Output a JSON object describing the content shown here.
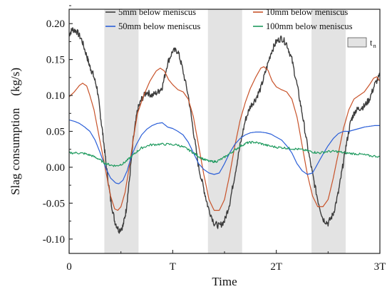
{
  "chart_data": {
    "type": "line",
    "xlabel": "Time",
    "ylabel": "Slag consumption　(kg/s)",
    "xlim": [
      0,
      3
    ],
    "ylim": [
      -0.12,
      0.22
    ],
    "x_ticks": [
      {
        "value": 0,
        "label": "0"
      },
      {
        "value": 1,
        "label": "T"
      },
      {
        "value": 2,
        "label": "2T"
      },
      {
        "value": 3,
        "label": "3T"
      }
    ],
    "y_ticks": [
      {
        "value": -0.1,
        "label": "-0.10"
      },
      {
        "value": -0.05,
        "label": "-0.05"
      },
      {
        "value": 0.0,
        "label": "0.00"
      },
      {
        "value": 0.05,
        "label": "0.05"
      },
      {
        "value": 0.1,
        "label": "0.10"
      },
      {
        "value": 0.15,
        "label": "0.15"
      },
      {
        "value": 0.2,
        "label": "0.20"
      }
    ],
    "shaded_regions": {
      "label": "t",
      "label_sub": "n",
      "color": "#e3e3e3",
      "ranges": [
        [
          0.34,
          0.67
        ],
        [
          1.34,
          1.67
        ],
        [
          2.34,
          2.67
        ]
      ]
    },
    "series": [
      {
        "name": "5mm below meniscus",
        "color": "#3c3c3c",
        "noise": 0.0045,
        "points": [
          [
            0,
            0.185
          ],
          [
            0.03,
            0.192
          ],
          [
            0.07,
            0.19
          ],
          [
            0.12,
            0.178
          ],
          [
            0.17,
            0.155
          ],
          [
            0.2,
            0.14
          ],
          [
            0.23,
            0.13
          ],
          [
            0.27,
            0.11
          ],
          [
            0.3,
            0.075
          ],
          [
            0.33,
            0.04
          ],
          [
            0.36,
            0.0
          ],
          [
            0.4,
            -0.045
          ],
          [
            0.44,
            -0.075
          ],
          [
            0.48,
            -0.088
          ],
          [
            0.52,
            -0.082
          ],
          [
            0.55,
            -0.06
          ],
          [
            0.58,
            -0.02
          ],
          [
            0.62,
            0.04
          ],
          [
            0.66,
            0.08
          ],
          [
            0.7,
            0.095
          ],
          [
            0.75,
            0.105
          ],
          [
            0.8,
            0.1
          ],
          [
            0.86,
            0.105
          ],
          [
            0.9,
            0.112
          ],
          [
            0.95,
            0.145
          ],
          [
            1.0,
            0.162
          ],
          [
            1.05,
            0.162
          ],
          [
            1.09,
            0.14
          ],
          [
            1.15,
            0.1
          ],
          [
            1.2,
            0.05
          ],
          [
            1.25,
            0.0
          ],
          [
            1.3,
            -0.03
          ],
          [
            1.34,
            -0.055
          ],
          [
            1.4,
            -0.078
          ],
          [
            1.45,
            -0.082
          ],
          [
            1.5,
            -0.075
          ],
          [
            1.55,
            -0.05
          ],
          [
            1.6,
            -0.01
          ],
          [
            1.65,
            0.03
          ],
          [
            1.7,
            0.065
          ],
          [
            1.75,
            0.085
          ],
          [
            1.8,
            0.095
          ],
          [
            1.85,
            0.11
          ],
          [
            1.9,
            0.135
          ],
          [
            1.95,
            0.16
          ],
          [
            2.0,
            0.175
          ],
          [
            2.05,
            0.18
          ],
          [
            2.1,
            0.172
          ],
          [
            2.15,
            0.15
          ],
          [
            2.2,
            0.115
          ],
          [
            2.25,
            0.075
          ],
          [
            2.3,
            0.03
          ],
          [
            2.35,
            -0.01
          ],
          [
            2.4,
            -0.045
          ],
          [
            2.45,
            -0.072
          ],
          [
            2.5,
            -0.078
          ],
          [
            2.55,
            -0.065
          ],
          [
            2.6,
            -0.035
          ],
          [
            2.64,
            0.0
          ],
          [
            2.68,
            0.035
          ],
          [
            2.72,
            0.065
          ],
          [
            2.76,
            0.078
          ],
          [
            2.8,
            0.082
          ],
          [
            2.85,
            0.085
          ],
          [
            2.9,
            0.095
          ],
          [
            2.95,
            0.115
          ],
          [
            3.0,
            0.128
          ]
        ]
      },
      {
        "name": "10mm below meniscus",
        "color": "#c8532a",
        "noise": 0,
        "points": [
          [
            0,
            0.098
          ],
          [
            0.05,
            0.105
          ],
          [
            0.1,
            0.114
          ],
          [
            0.13,
            0.117
          ],
          [
            0.17,
            0.113
          ],
          [
            0.2,
            0.1
          ],
          [
            0.24,
            0.08
          ],
          [
            0.28,
            0.05
          ],
          [
            0.32,
            0.02
          ],
          [
            0.36,
            -0.01
          ],
          [
            0.4,
            -0.04
          ],
          [
            0.44,
            -0.058
          ],
          [
            0.47,
            -0.06
          ],
          [
            0.5,
            -0.055
          ],
          [
            0.54,
            -0.035
          ],
          [
            0.58,
            0.0
          ],
          [
            0.62,
            0.04
          ],
          [
            0.66,
            0.075
          ],
          [
            0.72,
            0.1
          ],
          [
            0.78,
            0.12
          ],
          [
            0.84,
            0.134
          ],
          [
            0.88,
            0.138
          ],
          [
            0.92,
            0.134
          ],
          [
            0.96,
            0.122
          ],
          [
            1.0,
            0.115
          ],
          [
            1.05,
            0.108
          ],
          [
            1.1,
            0.105
          ],
          [
            1.15,
            0.095
          ],
          [
            1.2,
            0.07
          ],
          [
            1.25,
            0.03
          ],
          [
            1.3,
            -0.01
          ],
          [
            1.35,
            -0.045
          ],
          [
            1.4,
            -0.06
          ],
          [
            1.45,
            -0.06
          ],
          [
            1.5,
            -0.045
          ],
          [
            1.55,
            -0.01
          ],
          [
            1.6,
            0.03
          ],
          [
            1.65,
            0.065
          ],
          [
            1.7,
            0.09
          ],
          [
            1.75,
            0.11
          ],
          [
            1.8,
            0.125
          ],
          [
            1.85,
            0.138
          ],
          [
            1.88,
            0.14
          ],
          [
            1.92,
            0.135
          ],
          [
            1.96,
            0.12
          ],
          [
            2.0,
            0.112
          ],
          [
            2.05,
            0.108
          ],
          [
            2.1,
            0.105
          ],
          [
            2.15,
            0.095
          ],
          [
            2.2,
            0.07
          ],
          [
            2.25,
            0.03
          ],
          [
            2.3,
            -0.01
          ],
          [
            2.35,
            -0.04
          ],
          [
            2.4,
            -0.055
          ],
          [
            2.45,
            -0.055
          ],
          [
            2.5,
            -0.045
          ],
          [
            2.55,
            -0.015
          ],
          [
            2.6,
            0.02
          ],
          [
            2.65,
            0.055
          ],
          [
            2.7,
            0.08
          ],
          [
            2.75,
            0.095
          ],
          [
            2.8,
            0.1
          ],
          [
            2.85,
            0.105
          ],
          [
            2.9,
            0.115
          ],
          [
            2.94,
            0.124
          ],
          [
            2.97,
            0.126
          ],
          [
            3.0,
            0.12
          ]
        ]
      },
      {
        "name": "50mm below meniscus",
        "color": "#2b5fd8",
        "noise": 0,
        "points": [
          [
            0,
            0.066
          ],
          [
            0.05,
            0.064
          ],
          [
            0.1,
            0.061
          ],
          [
            0.15,
            0.056
          ],
          [
            0.2,
            0.05
          ],
          [
            0.25,
            0.038
          ],
          [
            0.3,
            0.02
          ],
          [
            0.35,
            0.0
          ],
          [
            0.4,
            -0.015
          ],
          [
            0.45,
            -0.022
          ],
          [
            0.48,
            -0.023
          ],
          [
            0.52,
            -0.018
          ],
          [
            0.56,
            -0.005
          ],
          [
            0.6,
            0.015
          ],
          [
            0.65,
            0.032
          ],
          [
            0.7,
            0.045
          ],
          [
            0.75,
            0.053
          ],
          [
            0.8,
            0.058
          ],
          [
            0.85,
            0.061
          ],
          [
            0.9,
            0.062
          ],
          [
            0.95,
            0.056
          ],
          [
            1.0,
            0.054
          ],
          [
            1.05,
            0.05
          ],
          [
            1.1,
            0.045
          ],
          [
            1.15,
            0.035
          ],
          [
            1.2,
            0.02
          ],
          [
            1.25,
            0.005
          ],
          [
            1.3,
            -0.003
          ],
          [
            1.35,
            -0.008
          ],
          [
            1.4,
            -0.01
          ],
          [
            1.45,
            -0.008
          ],
          [
            1.5,
            0.005
          ],
          [
            1.55,
            0.02
          ],
          [
            1.6,
            0.032
          ],
          [
            1.65,
            0.04
          ],
          [
            1.7,
            0.045
          ],
          [
            1.75,
            0.048
          ],
          [
            1.8,
            0.049
          ],
          [
            1.85,
            0.049
          ],
          [
            1.9,
            0.048
          ],
          [
            1.95,
            0.046
          ],
          [
            2.0,
            0.042
          ],
          [
            2.05,
            0.038
          ],
          [
            2.1,
            0.03
          ],
          [
            2.15,
            0.02
          ],
          [
            2.2,
            0.005
          ],
          [
            2.25,
            -0.005
          ],
          [
            2.3,
            -0.01
          ],
          [
            2.35,
            -0.008
          ],
          [
            2.4,
            0.005
          ],
          [
            2.45,
            0.018
          ],
          [
            2.5,
            0.03
          ],
          [
            2.55,
            0.04
          ],
          [
            2.6,
            0.047
          ],
          [
            2.65,
            0.05
          ],
          [
            2.7,
            0.05
          ],
          [
            2.75,
            0.052
          ],
          [
            2.8,
            0.054
          ],
          [
            2.85,
            0.056
          ],
          [
            2.9,
            0.057
          ],
          [
            2.95,
            0.058
          ],
          [
            3.0,
            0.058
          ]
        ]
      },
      {
        "name": "100mm below meniscus",
        "color": "#1e9a5e",
        "noise": 0.0016,
        "points": [
          [
            0,
            0.02
          ],
          [
            0.08,
            0.02
          ],
          [
            0.15,
            0.019
          ],
          [
            0.22,
            0.016
          ],
          [
            0.28,
            0.012
          ],
          [
            0.34,
            0.006
          ],
          [
            0.4,
            0.003
          ],
          [
            0.46,
            0.002
          ],
          [
            0.52,
            0.005
          ],
          [
            0.58,
            0.012
          ],
          [
            0.64,
            0.02
          ],
          [
            0.7,
            0.027
          ],
          [
            0.78,
            0.031
          ],
          [
            0.86,
            0.032
          ],
          [
            0.95,
            0.032
          ],
          [
            1.05,
            0.031
          ],
          [
            1.12,
            0.027
          ],
          [
            1.18,
            0.022
          ],
          [
            1.24,
            0.016
          ],
          [
            1.3,
            0.011
          ],
          [
            1.36,
            0.008
          ],
          [
            1.42,
            0.008
          ],
          [
            1.48,
            0.012
          ],
          [
            1.54,
            0.018
          ],
          [
            1.6,
            0.024
          ],
          [
            1.66,
            0.03
          ],
          [
            1.72,
            0.034
          ],
          [
            1.78,
            0.035
          ],
          [
            1.85,
            0.033
          ],
          [
            1.92,
            0.03
          ],
          [
            2.0,
            0.028
          ],
          [
            2.08,
            0.027
          ],
          [
            2.15,
            0.026
          ],
          [
            2.22,
            0.025
          ],
          [
            2.3,
            0.023
          ],
          [
            2.36,
            0.021
          ],
          [
            2.42,
            0.02
          ],
          [
            2.5,
            0.022
          ],
          [
            2.58,
            0.022
          ],
          [
            2.66,
            0.02
          ],
          [
            2.74,
            0.019
          ],
          [
            2.82,
            0.018
          ],
          [
            2.9,
            0.016
          ],
          [
            3.0,
            0.015
          ]
        ]
      }
    ]
  }
}
